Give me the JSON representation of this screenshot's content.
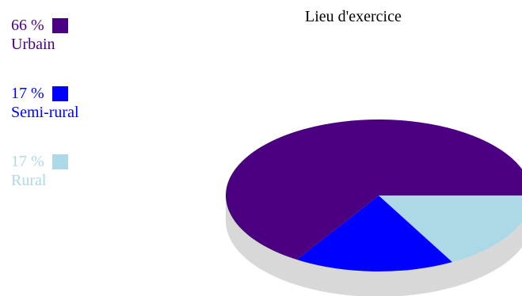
{
  "chart_data": {
    "type": "pie",
    "title": "Lieu d'exercice",
    "legend_position": "top-left",
    "three_d": true,
    "slices": [
      {
        "label": "Urbain",
        "value": 66,
        "percent_label": "66 %",
        "color": "#4b0082"
      },
      {
        "label": "Semi-rural",
        "value": 17,
        "percent_label": "17 %",
        "color": "#0000ff"
      },
      {
        "label": "Rural",
        "value": 17,
        "percent_label": "17 %",
        "color": "#add8e6"
      }
    ],
    "side_color": "#d8d8d8"
  }
}
